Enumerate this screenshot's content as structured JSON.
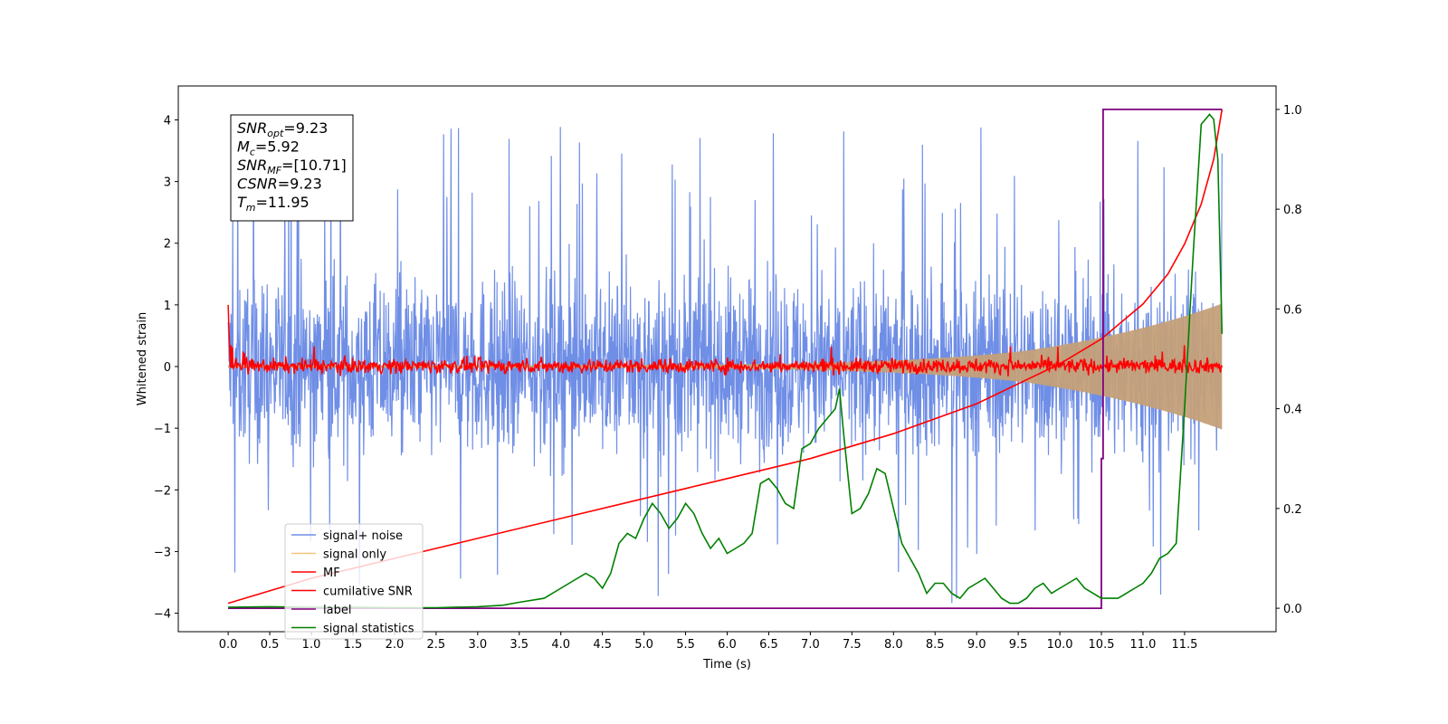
{
  "chart_data": {
    "type": "line",
    "title": "",
    "xlabel": "Time (s)",
    "ylabel": "Whitened strain",
    "xlim": [
      -0.6,
      12.6
    ],
    "ylim": [
      -4.3,
      4.55
    ],
    "y2lim": [
      -0.047,
      1.047
    ],
    "xticks": [
      "0.0",
      "0.5",
      "1.0",
      "1.5",
      "2.0",
      "2.5",
      "3.0",
      "3.5",
      "4.0",
      "4.5",
      "5.0",
      "5.5",
      "6.0",
      "6.5",
      "7.0",
      "7.5",
      "8.0",
      "8.5",
      "9.0",
      "9.5",
      "10.0",
      "10.5",
      "11.0",
      "11.5"
    ],
    "yticks": [
      "−4",
      "−3",
      "−2",
      "−1",
      "0",
      "1",
      "2",
      "3",
      "4"
    ],
    "y2ticks": [
      "0.0",
      "0.2",
      "0.4",
      "0.6",
      "0.8",
      "1.0"
    ],
    "grid": false,
    "legend_position": "lower-left",
    "annotation": [
      {
        "base": "SNR",
        "sub": "opt",
        "rest": "=9.23"
      },
      {
        "base": "M",
        "sub": "c",
        "rest": "=5.92"
      },
      {
        "base": "SNR",
        "sub": "MF",
        "rest": "=[10.71]"
      },
      {
        "base": "CSNR",
        "sub": "",
        "rest": "=9.23"
      },
      {
        "base": "T",
        "sub": "m",
        "rest": "=11.95"
      }
    ],
    "series": [
      {
        "name": "signal+ noise",
        "color": "#6f8ee6",
        "axis": "left",
        "style": "noise",
        "x_range": [
          0,
          11.95
        ],
        "envelope_low": -1.8,
        "envelope_high": 1.8,
        "spike_max": 4.1,
        "spike_min": -3.9
      },
      {
        "name": "signal only",
        "color": "#f5c77e",
        "axis": "left",
        "style": "chirp",
        "x_range": [
          0,
          11.95
        ],
        "amplitude_start": 0.02,
        "amplitude_end": 0.9
      },
      {
        "name": "MF",
        "color": "#ff0000",
        "axis": "left",
        "style": "noise",
        "x_range": [
          0,
          11.95
        ],
        "envelope_low": -0.15,
        "envelope_high": 0.2,
        "start_value": 1.0
      },
      {
        "name": "cumilative SNR",
        "color": "#ff0000",
        "axis": "right",
        "x": [
          0,
          1,
          2,
          3,
          4,
          5,
          6,
          7,
          8,
          9,
          10,
          10.5,
          11,
          11.3,
          11.5,
          11.7,
          11.85,
          11.95
        ],
        "values": [
          0.01,
          0.06,
          0.1,
          0.14,
          0.18,
          0.22,
          0.26,
          0.3,
          0.35,
          0.41,
          0.49,
          0.54,
          0.61,
          0.67,
          0.73,
          0.81,
          0.9,
          1.0
        ]
      },
      {
        "name": "label",
        "color": "#800080",
        "axis": "right",
        "x": [
          0,
          10.5,
          10.5,
          10.52,
          10.52,
          11.95
        ],
        "values": [
          0,
          0,
          0.3,
          0.3,
          1.0,
          1.0
        ]
      },
      {
        "name": "signal statistics",
        "color": "#008000",
        "axis": "right",
        "x": [
          0,
          0.5,
          1.0,
          1.5,
          2.0,
          2.5,
          3.0,
          3.3,
          3.5,
          3.8,
          4.0,
          4.2,
          4.3,
          4.4,
          4.5,
          4.6,
          4.7,
          4.8,
          4.9,
          5.0,
          5.1,
          5.2,
          5.3,
          5.4,
          5.5,
          5.6,
          5.7,
          5.8,
          5.9,
          6.0,
          6.1,
          6.2,
          6.3,
          6.4,
          6.5,
          6.6,
          6.7,
          6.8,
          6.9,
          7.0,
          7.1,
          7.2,
          7.3,
          7.35,
          7.4,
          7.5,
          7.6,
          7.7,
          7.8,
          7.9,
          8.0,
          8.1,
          8.2,
          8.3,
          8.4,
          8.5,
          8.6,
          8.7,
          8.8,
          8.9,
          9.0,
          9.1,
          9.2,
          9.3,
          9.4,
          9.5,
          9.6,
          9.7,
          9.8,
          9.9,
          10.0,
          10.1,
          10.2,
          10.3,
          10.4,
          10.5,
          10.6,
          10.7,
          10.8,
          10.9,
          11.0,
          11.1,
          11.2,
          11.3,
          11.4,
          11.5,
          11.6,
          11.7,
          11.8,
          11.85,
          11.9,
          11.95
        ],
        "values": [
          0.002,
          0.003,
          0.002,
          0.002,
          0.001,
          0.001,
          0.003,
          0.006,
          0.012,
          0.02,
          0.04,
          0.06,
          0.07,
          0.06,
          0.04,
          0.07,
          0.13,
          0.15,
          0.14,
          0.18,
          0.21,
          0.19,
          0.16,
          0.18,
          0.21,
          0.19,
          0.15,
          0.12,
          0.14,
          0.11,
          0.12,
          0.13,
          0.15,
          0.25,
          0.26,
          0.24,
          0.21,
          0.2,
          0.32,
          0.33,
          0.36,
          0.38,
          0.4,
          0.44,
          0.35,
          0.19,
          0.2,
          0.23,
          0.28,
          0.27,
          0.2,
          0.13,
          0.1,
          0.07,
          0.03,
          0.05,
          0.05,
          0.03,
          0.02,
          0.04,
          0.05,
          0.06,
          0.04,
          0.02,
          0.01,
          0.01,
          0.02,
          0.04,
          0.05,
          0.03,
          0.04,
          0.05,
          0.06,
          0.04,
          0.03,
          0.02,
          0.02,
          0.02,
          0.03,
          0.04,
          0.05,
          0.07,
          0.1,
          0.11,
          0.13,
          0.4,
          0.7,
          0.97,
          0.99,
          0.98,
          0.9,
          0.55
        ]
      }
    ]
  }
}
